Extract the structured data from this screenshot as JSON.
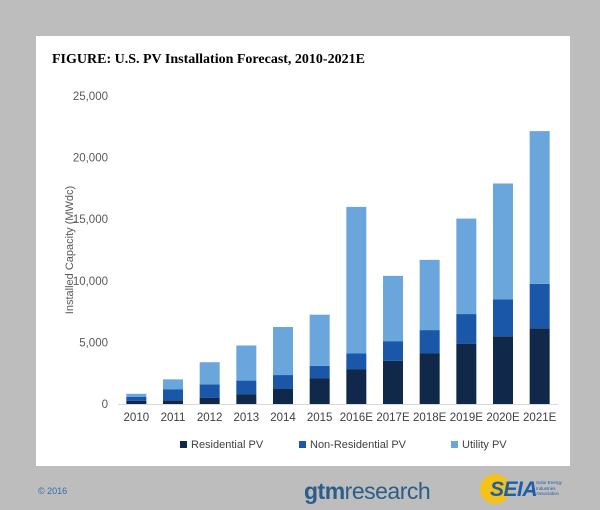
{
  "figure_title": "FIGURE: U.S. PV Installation Forecast, 2010-2021E",
  "copyright": "© 2016",
  "logos": {
    "gtm_part1": "gtm",
    "gtm_part2": "research",
    "seia": "SEIA",
    "seia_sub": "Solar Energy Industries Association"
  },
  "chart_data": {
    "type": "bar",
    "stacked": true,
    "categories": [
      "2010",
      "2011",
      "2012",
      "2013",
      "2014",
      "2015",
      "2016E",
      "2017E",
      "2018E",
      "2019E",
      "2020E",
      "2021E"
    ],
    "series": [
      {
        "name": "Residential PV",
        "color": "#10294a",
        "values": [
          250,
          300,
          490,
          800,
          1250,
          2100,
          2800,
          3500,
          4100,
          4900,
          5500,
          6150
        ]
      },
      {
        "name": "Non-Residential PV",
        "color": "#1b57a8",
        "values": [
          340,
          900,
          1100,
          1100,
          1100,
          1000,
          1300,
          1600,
          1900,
          2400,
          3000,
          3600
        ]
      },
      {
        "name": "Utility PV",
        "color": "#6aa6dc",
        "values": [
          240,
          800,
          1800,
          2850,
          3900,
          4150,
          11900,
          5300,
          5700,
          7750,
          9400,
          12400
        ]
      }
    ],
    "ylabel": "Installed Capacity (MWdc)",
    "xlabel": "",
    "ylim": [
      0,
      25000
    ],
    "yticks": [
      0,
      5000,
      10000,
      15000,
      20000,
      25000
    ],
    "ytick_labels": [
      "0",
      "5,000",
      "10,000",
      "15,000",
      "20,000",
      "25,000"
    ],
    "grid": false,
    "legend_position": "bottom"
  }
}
